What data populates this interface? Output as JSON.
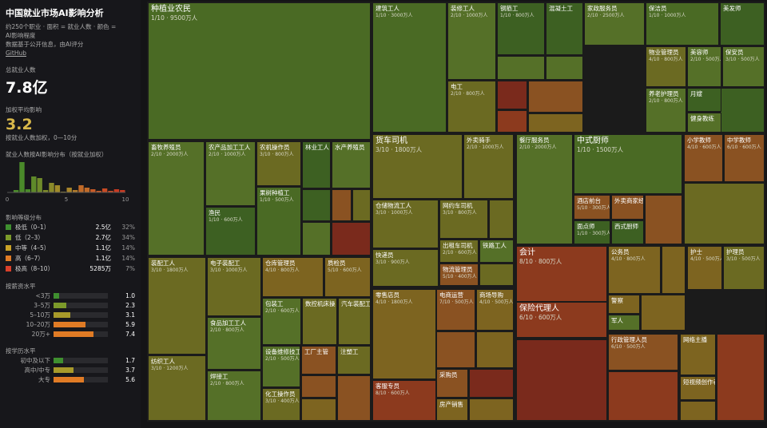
{
  "sidebar": {
    "title": "中国就业市场AI影响分析",
    "description": [
      "约250个职业 · 面积 = 就业人数 · 颜色 =",
      "AI影响程度",
      "数据基于公开信息，由AI评分"
    ],
    "link": "GitHub",
    "total": {
      "label": "总就业人数",
      "value": "7.8亿"
    },
    "average": {
      "label": "加权平均影响",
      "value": "3.2",
      "note": "按就业人数加权，0—10分"
    },
    "histogram": {
      "title": "就业人数按AI影响分布（按就业加权）",
      "bins": [
        0,
        0.5,
        1,
        1.5,
        2,
        2.5,
        3,
        3.5,
        4,
        4.5,
        5,
        5.5,
        6,
        6.5,
        7,
        7.5,
        8,
        8.5,
        9,
        9.5,
        10
      ],
      "counts": [
        0,
        3,
        38,
        4,
        20,
        18,
        3,
        12,
        9,
        1,
        6,
        3,
        9,
        6,
        4,
        2,
        5,
        2,
        4,
        3
      ],
      "colors": [
        "#4a8a2a",
        "#4a8a2a",
        "#4a8a2a",
        "#4a8a2a",
        "#5f8a2a",
        "#6f8a2a",
        "#7d8a2a",
        "#8a8a2a",
        "#a08a2a",
        "#a08a2a",
        "#a8852a",
        "#b07a2a",
        "#c06a28",
        "#c06a28",
        "#c85a26",
        "#c85a26",
        "#c84a24",
        "#c84a24",
        "#c83a22",
        "#c83a22"
      ],
      "xlim": [
        0,
        10
      ],
      "xticks": [
        0,
        5,
        10
      ]
    },
    "levels": {
      "title": "影响等级分布",
      "items": [
        {
          "name": "极低（0–1）",
          "count": "2.5亿",
          "share": "32%",
          "color": "#3f8f2f"
        },
        {
          "name": "低（2–3）",
          "count": "2.7亿",
          "share": "34%",
          "color": "#7c9a2a"
        },
        {
          "name": "中等（4–5）",
          "count": "1.1亿",
          "share": "14%",
          "color": "#c9a227"
        },
        {
          "name": "高（6–7）",
          "count": "1.1亿",
          "share": "14%",
          "color": "#e07b25"
        },
        {
          "name": "极高（8–10）",
          "count": "5285万",
          "share": "7%",
          "color": "#d9402a"
        }
      ]
    },
    "salary": {
      "title": "按薪资水平",
      "categories": [
        "<3万",
        "3–5万",
        "5–10万",
        "10–20万",
        "20万+"
      ],
      "values": [
        1,
        2.3,
        3.1,
        5.9,
        7.4
      ],
      "value_labels": [
        "1.0",
        "2.3",
        "3.1",
        "5.9",
        "7.4"
      ],
      "colors": [
        "#3f8f2f",
        "#7c9a2a",
        "#a89a2a",
        "#e07b25",
        "#e07b25"
      ]
    },
    "education": {
      "title": "按学历水平",
      "categories": [
        "初中及以下",
        "高中/中专",
        "大专"
      ],
      "values": [
        1.7,
        3.7,
        5.6
      ],
      "colors": [
        "#3f8f2f",
        "#a89a2a",
        "#e07b25"
      ]
    }
  },
  "treemap": {
    "tiles": [
      {
        "name": "种植业农民",
        "sub": "1/10 · 9500万人"
      },
      {
        "name": "畜牧养殖员",
        "sub": "2/10 · 2000万人"
      },
      {
        "name": "农产品加工工人",
        "sub": "2/10 · 1000万人"
      },
      {
        "name": "渔民",
        "sub": "1/10 · 600万人"
      },
      {
        "name": "农机操作员",
        "sub": "3/10 · 800万人"
      },
      {
        "name": "果树种植工",
        "sub": "1/10 · 500万人"
      },
      {
        "name": "林业工人"
      },
      {
        "name": "水产养殖员"
      },
      {
        "name": "装配工人",
        "sub": "3/10 · 1800万人"
      },
      {
        "name": "纺织工人",
        "sub": "3/10 · 1200万人"
      },
      {
        "name": "电子装配工",
        "sub": "3/10 · 1000万人"
      },
      {
        "name": "食品加工工人",
        "sub": "2/10 · 800万人"
      },
      {
        "name": "焊接工",
        "sub": "2/10 · 800万人"
      },
      {
        "name": "仓库管理员",
        "sub": "4/10 · 800万人"
      },
      {
        "name": "质检员",
        "sub": "5/10 · 600万人"
      },
      {
        "name": "包装工",
        "sub": "2/10 · 600万人"
      },
      {
        "name": "数控机床操"
      },
      {
        "name": "汽车装配工"
      },
      {
        "name": "设备维修技工",
        "sub": "2/10 · 500万人"
      },
      {
        "name": "工厂主管"
      },
      {
        "name": "注塑工"
      },
      {
        "name": "化工操作员",
        "sub": "3/10 · 400万人"
      },
      {
        "name": "建筑工人",
        "sub": "1/10 · 3000万人"
      },
      {
        "name": "装修工人",
        "sub": "2/10 · 1000万人"
      },
      {
        "name": "钢筋工",
        "sub": "1/10 · 800万人"
      },
      {
        "name": "混凝土工"
      },
      {
        "name": "电工",
        "sub": "2/10 · 800万人"
      },
      {
        "name": "家政服务员",
        "sub": "2/10 · 2500万人"
      },
      {
        "name": "保洁员",
        "sub": "1/10 · 1000万人"
      },
      {
        "name": "美发师"
      },
      {
        "name": "物业管理员",
        "sub": "4/10 · 800万人"
      },
      {
        "name": "美容师",
        "sub": "2/10 · 500万人"
      },
      {
        "name": "保安员",
        "sub": "3/10 · 500万人"
      },
      {
        "name": "养老护理员",
        "sub": "2/10 · 800万人"
      },
      {
        "name": "月嫂"
      },
      {
        "name": "健身教练"
      },
      {
        "name": "货车司机",
        "sub": "3/10 · 1800万人"
      },
      {
        "name": "外卖骑手",
        "sub": "2/10 · 1000万人"
      },
      {
        "name": "仓储物流工人",
        "sub": "3/10 · 1000万人"
      },
      {
        "name": "网约车司机",
        "sub": "3/10 · 800万人"
      },
      {
        "name": "快递员",
        "sub": "3/10 · 900万人"
      },
      {
        "name": "出租车司机",
        "sub": "2/10 · 600万人"
      },
      {
        "name": "铁路工人"
      },
      {
        "name": "物流管理员",
        "sub": "5/10 · 400万人"
      },
      {
        "name": "零售店员",
        "sub": "4/10 · 1800万人"
      },
      {
        "name": "客服专员",
        "sub": "8/10 · 600万人"
      },
      {
        "name": "电商运营",
        "sub": "7/10 · 500万人"
      },
      {
        "name": "商场导购",
        "sub": "4/10 · 500万人"
      },
      {
        "name": "采购员"
      },
      {
        "name": "房产销售"
      },
      {
        "name": "餐厅服务员",
        "sub": "2/10 · 2000万人"
      },
      {
        "name": "中式厨师",
        "sub": "1/10 · 1500万人"
      },
      {
        "name": "酒店前台",
        "sub": "5/10 · 300万人"
      },
      {
        "name": "外卖商家经"
      },
      {
        "name": "面点师",
        "sub": "1/10 · 300万人"
      },
      {
        "name": "西式厨师"
      },
      {
        "name": "小学教师",
        "sub": "4/10 · 600万人"
      },
      {
        "name": "中学教师",
        "sub": "6/10 · 600万人"
      },
      {
        "name": "会计",
        "sub": "8/10 · 800万人"
      },
      {
        "name": "保险代理人",
        "sub": "6/10 · 600万人"
      },
      {
        "name": "公务员",
        "sub": "4/10 · 800万人"
      },
      {
        "name": "警察"
      },
      {
        "name": "军人"
      },
      {
        "name": "护士",
        "sub": "4/10 · 500万人"
      },
      {
        "name": "护理员",
        "sub": "3/10 · 500万人"
      },
      {
        "name": "行政管理人员",
        "sub": "6/10 · 500万人"
      },
      {
        "name": "网络主播"
      },
      {
        "name": "短视频创作者"
      }
    ]
  }
}
